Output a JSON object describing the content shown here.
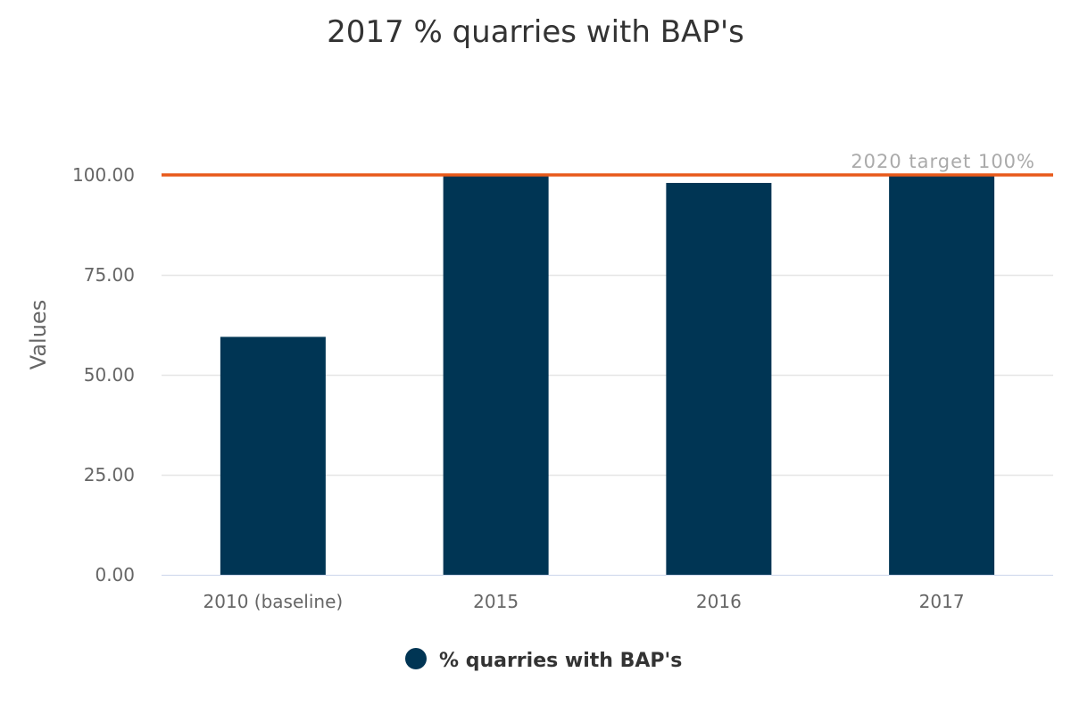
{
  "chart_data": {
    "type": "bar",
    "title": "2017 % quarries with BAP's",
    "categories": [
      "2010 (baseline)",
      "2015",
      "2016",
      "2017"
    ],
    "series": [
      {
        "name": "% quarries with BAP's",
        "values": [
          59.5,
          100,
          98,
          100
        ],
        "color": "#003554"
      }
    ],
    "ylabel": "Values",
    "xlabel": "",
    "ylim": [
      0,
      100
    ],
    "yticks": [
      "0.00",
      "25.00",
      "50.00",
      "75.00",
      "100.00"
    ],
    "ytick_values": [
      0,
      25,
      50,
      75,
      100
    ],
    "grid": true,
    "legend": "bottom-center",
    "plot_line": {
      "value": 100,
      "label": "2020 target 100%",
      "color": "#e8591a"
    },
    "colors": {
      "grid": "#e6e6e6",
      "axis": "#ccd6eb"
    }
  }
}
